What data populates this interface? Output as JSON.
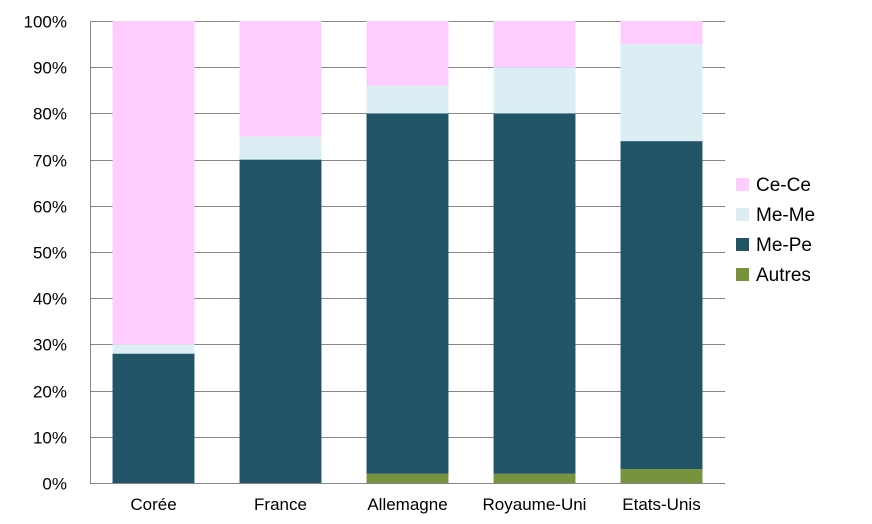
{
  "chart_data": {
    "type": "bar",
    "stacked": true,
    "title": "",
    "xlabel": "",
    "ylabel": "",
    "ylim": [
      0,
      100
    ],
    "y_ticks": [
      "0%",
      "10%",
      "20%",
      "30%",
      "40%",
      "50%",
      "60%",
      "70%",
      "80%",
      "90%",
      "100%"
    ],
    "categories": [
      "Corée",
      "France",
      "Allemagne",
      "Royaume-Uni",
      "Etats-Unis"
    ],
    "series": [
      {
        "name": "Autres",
        "color": "#77933c",
        "values": [
          0,
          0,
          2,
          2,
          3
        ]
      },
      {
        "name": "Me-Pe",
        "color": "#215467",
        "values": [
          28,
          70,
          78,
          78,
          71
        ]
      },
      {
        "name": "Me-Me",
        "color": "#daeef3",
        "values": [
          2,
          5,
          6,
          10,
          21
        ]
      },
      {
        "name": "Ce-Ce",
        "color": "#ffccff",
        "values": [
          70,
          25,
          14,
          10,
          5
        ]
      }
    ],
    "legend_order": [
      "Ce-Ce",
      "Me-Me",
      "Me-Pe",
      "Autres"
    ],
    "legend_position": "right",
    "grid": true
  }
}
